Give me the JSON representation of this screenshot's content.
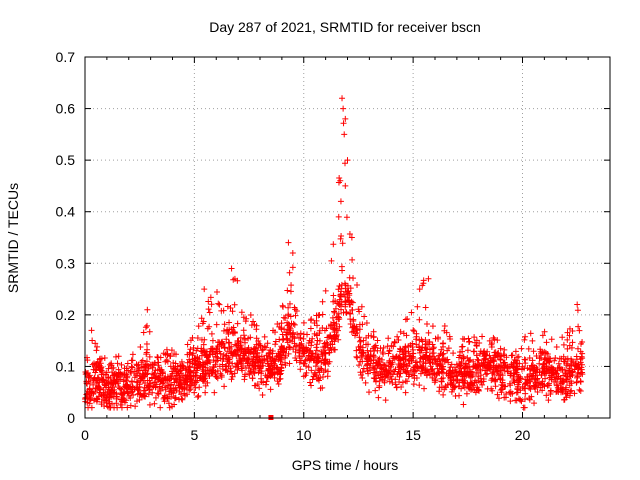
{
  "chart_data": {
    "type": "scatter",
    "title": "Day 287 of 2021, SRMTID for receiver bscn",
    "xlabel": "GPS time / hours",
    "ylabel": "SRMTID / TECUs",
    "xlim": [
      0,
      24
    ],
    "ylim": [
      0,
      0.7
    ],
    "x_ticks": [
      0,
      5,
      10,
      15,
      20
    ],
    "x_tick_labels": [
      "0",
      "5",
      "10",
      "15",
      "20"
    ],
    "y_ticks": [
      0,
      0.1,
      0.2,
      0.3,
      0.4,
      0.5,
      0.6,
      0.7
    ],
    "y_tick_labels": [
      "0",
      "0.1",
      "0.2",
      "0.3",
      "0.4",
      "0.5",
      "0.6",
      "0.7"
    ],
    "grid": true,
    "marker": "plus",
    "color": "#ff0000",
    "series": [
      {
        "name": "SRMTID",
        "note": "dense scatter; envelope sampled from the figure, background points generated from it",
        "x_start": 0.0,
        "x_end": 22.75,
        "envelope_hours": [
          0,
          1,
          2,
          2.5,
          2.8,
          3.2,
          4,
          4.5,
          5,
          5.5,
          6,
          6.5,
          6.8,
          7.2,
          7.6,
          8,
          8.5,
          9,
          9.3,
          9.6,
          10,
          10.5,
          11,
          11.5,
          11.8,
          12.1,
          12.5,
          13,
          13.5,
          14,
          14.5,
          15,
          15.5,
          16,
          16.5,
          17,
          17.5,
          18,
          18.5,
          19,
          19.5,
          20,
          20.5,
          21,
          21.5,
          22,
          22.5,
          22.75
        ],
        "envelope_mean": [
          0.06,
          0.055,
          0.06,
          0.07,
          0.08,
          0.07,
          0.07,
          0.075,
          0.085,
          0.1,
          0.11,
          0.12,
          0.13,
          0.12,
          0.11,
          0.1,
          0.1,
          0.12,
          0.17,
          0.15,
          0.12,
          0.11,
          0.12,
          0.18,
          0.26,
          0.22,
          0.13,
          0.1,
          0.09,
          0.09,
          0.1,
          0.12,
          0.11,
          0.1,
          0.09,
          0.08,
          0.08,
          0.09,
          0.1,
          0.09,
          0.08,
          0.07,
          0.08,
          0.09,
          0.08,
          0.08,
          0.09,
          0.1
        ],
        "envelope_max": [
          0.17,
          0.12,
          0.12,
          0.13,
          0.21,
          0.13,
          0.14,
          0.14,
          0.16,
          0.22,
          0.25,
          0.23,
          0.29,
          0.26,
          0.2,
          0.18,
          0.17,
          0.22,
          0.34,
          0.3,
          0.2,
          0.2,
          0.26,
          0.42,
          0.62,
          0.36,
          0.24,
          0.18,
          0.16,
          0.16,
          0.18,
          0.25,
          0.27,
          0.18,
          0.18,
          0.16,
          0.16,
          0.16,
          0.16,
          0.15,
          0.14,
          0.15,
          0.19,
          0.17,
          0.16,
          0.16,
          0.22,
          0.15
        ],
        "outlier_points": [
          [
            0.3,
            0.17
          ],
          [
            2.85,
            0.21
          ],
          [
            5.45,
            0.25
          ],
          [
            6.7,
            0.29
          ],
          [
            9.3,
            0.34
          ],
          [
            9.5,
            0.32
          ],
          [
            11.75,
            0.62
          ],
          [
            11.8,
            0.6
          ],
          [
            11.9,
            0.58
          ],
          [
            11.85,
            0.55
          ],
          [
            12.0,
            0.5
          ],
          [
            11.9,
            0.45
          ],
          [
            11.7,
            0.42
          ],
          [
            11.6,
            0.39
          ],
          [
            12.2,
            0.35
          ],
          [
            15.3,
            0.25
          ],
          [
            15.7,
            0.27
          ],
          [
            22.5,
            0.22
          ],
          [
            8.5,
            0.0
          ]
        ]
      }
    ]
  }
}
